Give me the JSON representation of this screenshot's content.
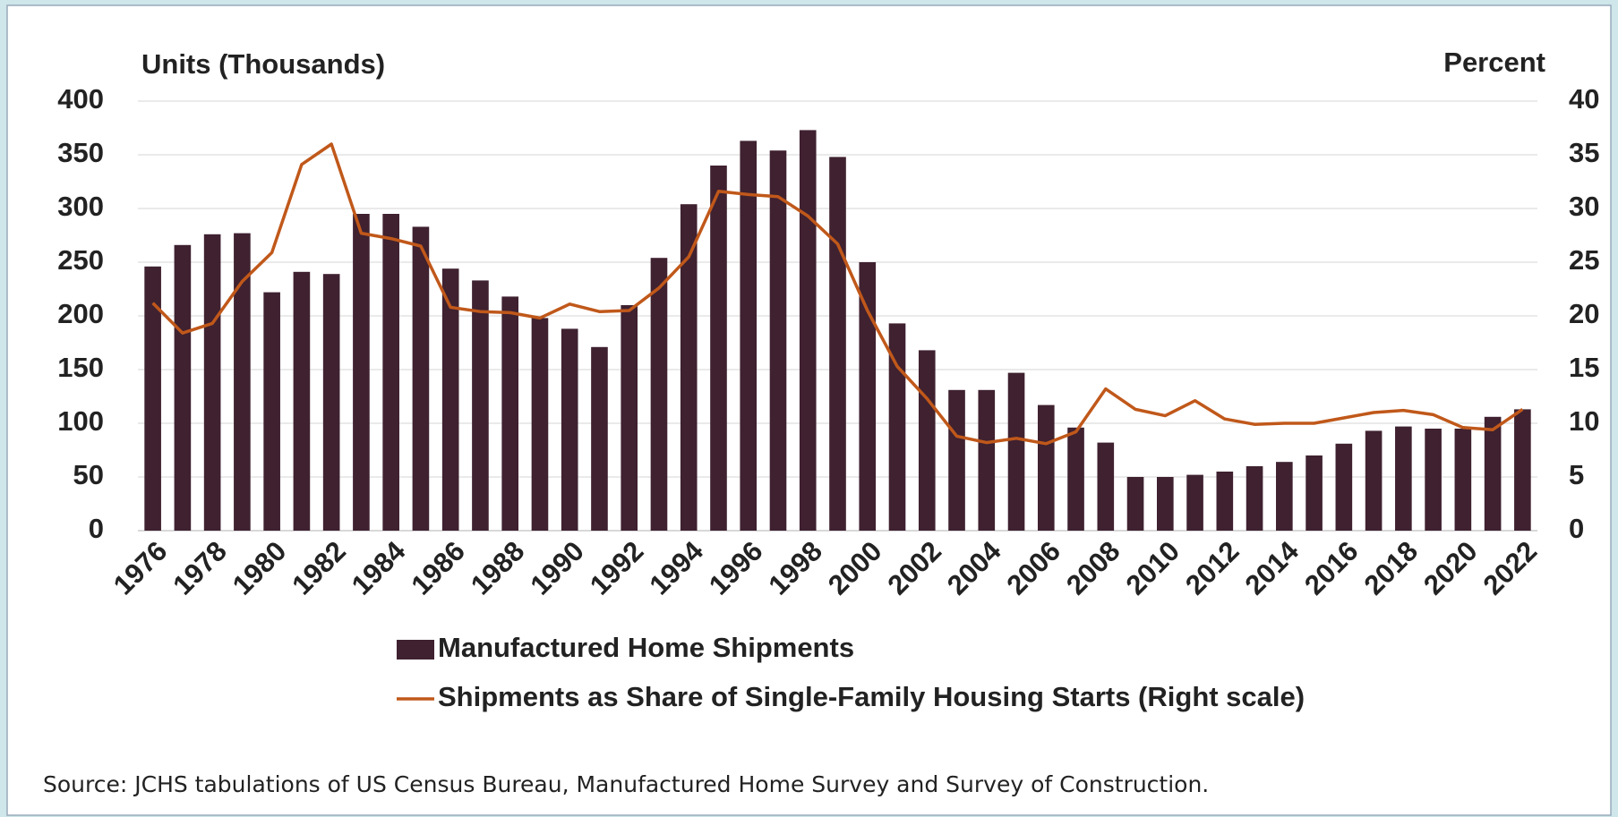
{
  "chart_data": {
    "type": "bar",
    "ylabel": "Units (Thousands)",
    "y2label": "Percent",
    "source": "Source: JCHS tabulations of US Census Bureau, Manufactured Home Survey and Survey of Construction.",
    "categories": [
      "1976",
      null,
      "1978",
      null,
      "1980",
      null,
      "1982",
      null,
      "1984",
      null,
      "1986",
      null,
      "1988",
      null,
      "1990",
      null,
      "1992",
      null,
      "1994",
      null,
      "1996",
      null,
      "1998",
      null,
      "2000",
      null,
      "2002",
      null,
      "2004",
      null,
      "2006",
      null,
      "2008",
      null,
      "2010",
      null,
      "2012",
      null,
      "2014",
      null,
      "2016",
      null,
      "2018",
      null,
      "2020",
      null,
      "2022"
    ],
    "series": [
      {
        "name": "Manufactured Home Shipments",
        "type": "bar",
        "color": "#3f2130",
        "values": [
          246,
          266,
          276,
          277,
          222,
          241,
          239,
          295,
          295,
          283,
          244,
          233,
          218,
          198,
          188,
          171,
          210,
          254,
          304,
          340,
          363,
          354,
          373,
          348,
          250,
          193,
          168,
          131,
          131,
          147,
          117,
          96,
          82,
          50,
          50,
          52,
          55,
          60,
          64,
          70,
          81,
          93,
          97,
          95,
          95,
          106,
          113
        ]
      },
      {
        "name": "Shipments as Share of Single-Family Housing Starts (Right scale)",
        "type": "line",
        "axis": "y2",
        "color": "#c0581a",
        "values": [
          21.2,
          18.4,
          19.3,
          23.2,
          25.9,
          34.1,
          36.0,
          27.7,
          27.2,
          26.5,
          20.8,
          20.4,
          20.3,
          19.8,
          21.1,
          20.4,
          20.5,
          22.6,
          25.5,
          31.6,
          31.3,
          31.1,
          29.3,
          26.7,
          20.5,
          15.3,
          12.3,
          8.8,
          8.2,
          8.6,
          8.1,
          9.2,
          13.2,
          11.3,
          10.7,
          12.1,
          10.4,
          9.9,
          10.0,
          10.0,
          10.5,
          11.0,
          11.2,
          10.8,
          9.6,
          9.4,
          11.3
        ]
      }
    ],
    "ylim": [
      0,
      400
    ],
    "yticks": [
      0,
      50,
      100,
      150,
      200,
      250,
      300,
      350,
      400
    ],
    "y2lim": [
      0,
      40
    ],
    "y2ticks": [
      0,
      5,
      10,
      15,
      20,
      25,
      30,
      35,
      40
    ],
    "grid": true
  }
}
